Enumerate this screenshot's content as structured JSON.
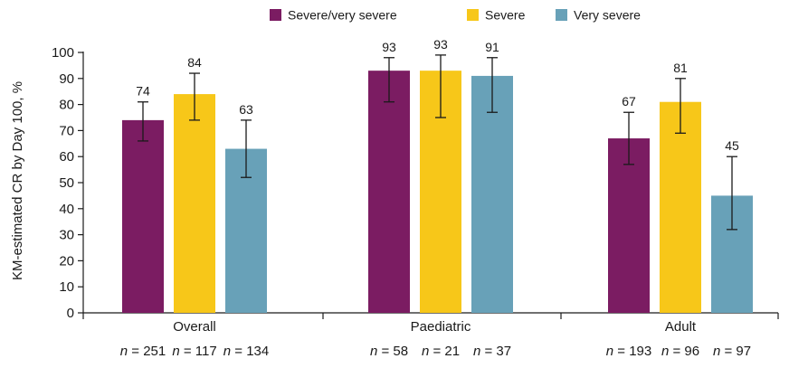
{
  "chart_data": {
    "type": "bar",
    "ylabel": "KM-estimated CR by Day 100, %",
    "xlabel": "",
    "ylim": [
      0,
      100
    ],
    "yticks": [
      0,
      10,
      20,
      30,
      40,
      50,
      60,
      70,
      80,
      90,
      100
    ],
    "legend_position": "top",
    "colors": {
      "Severe/very severe": "#7b1c62",
      "Severe": "#f7c719",
      "Very severe": "#68a1b8"
    },
    "categories": [
      "Overall",
      "Paediatric",
      "Adult"
    ],
    "series": [
      {
        "name": "Severe/very severe",
        "values": [
          74,
          93,
          67
        ],
        "err_low": [
          66,
          81,
          57
        ],
        "err_high": [
          81,
          98,
          77
        ],
        "n": [
          "251",
          "58",
          "193"
        ]
      },
      {
        "name": "Severe",
        "values": [
          84,
          93,
          81
        ],
        "err_low": [
          74,
          75,
          69
        ],
        "err_high": [
          92,
          99,
          90
        ],
        "n": [
          "117",
          "21",
          "96"
        ]
      },
      {
        "name": "Very severe",
        "values": [
          63,
          91,
          45
        ],
        "err_low": [
          52,
          77,
          32
        ],
        "err_high": [
          74,
          98,
          60
        ],
        "n": [
          "134",
          "37",
          "97"
        ]
      }
    ],
    "n_prefix": "n",
    "n_separator": " = "
  }
}
